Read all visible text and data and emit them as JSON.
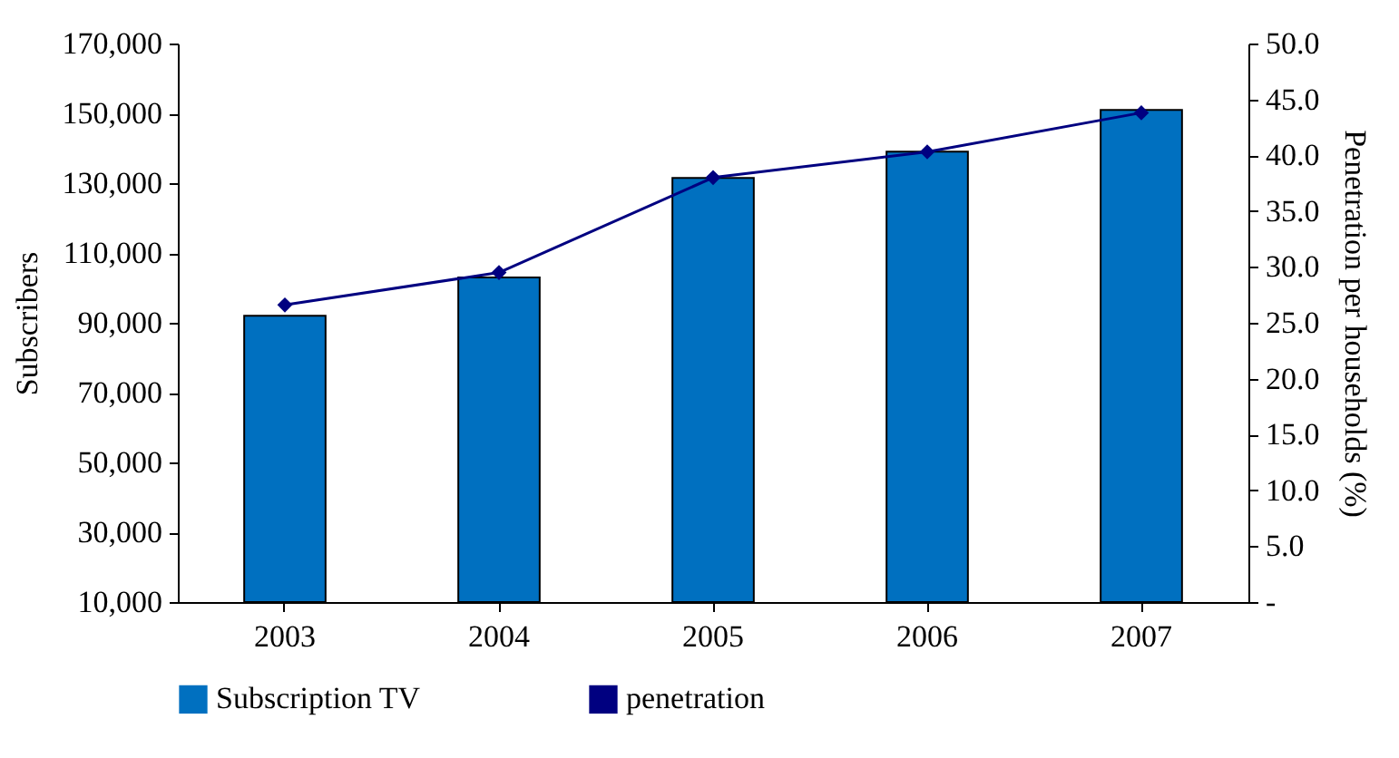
{
  "chart_data": {
    "type": "bar",
    "categories": [
      "2003",
      "2004",
      "2005",
      "2006",
      "2007"
    ],
    "ylabel": "Subscribers",
    "y2label": "Penetration per households (%)",
    "ylim": [
      10000,
      170000
    ],
    "yticks": [
      {
        "value": 10000,
        "label": "10,000"
      },
      {
        "value": 30000,
        "label": "30,000"
      },
      {
        "value": 50000,
        "label": "50,000"
      },
      {
        "value": 70000,
        "label": "70,000"
      },
      {
        "value": 90000,
        "label": "90,000"
      },
      {
        "value": 110000,
        "label": "110,000"
      },
      {
        "value": 130000,
        "label": "130,000"
      },
      {
        "value": 150000,
        "label": "150,000"
      },
      {
        "value": 170000,
        "label": "170,000"
      }
    ],
    "y2lim": [
      0,
      50
    ],
    "y2ticks": [
      {
        "value": 0,
        "label": "-"
      },
      {
        "value": 5,
        "label": "5.0"
      },
      {
        "value": 10,
        "label": "10.0"
      },
      {
        "value": 15,
        "label": "15.0"
      },
      {
        "value": 20,
        "label": "20.0"
      },
      {
        "value": 25,
        "label": "25.0"
      },
      {
        "value": 30,
        "label": "30.0"
      },
      {
        "value": 35,
        "label": "35.0"
      },
      {
        "value": 40,
        "label": "40.0"
      },
      {
        "value": 45,
        "label": "45.0"
      },
      {
        "value": 50,
        "label": "50.0"
      }
    ],
    "series": [
      {
        "name": "Subscription TV",
        "color": "#0070c0",
        "values": [
          92000,
          103000,
          131500,
          139000,
          151000
        ]
      },
      {
        "name": "penetration",
        "type": "line",
        "axis": "y2",
        "color": "#000080",
        "marker": "diamond",
        "values": [
          26.6,
          29.5,
          38.0,
          40.3,
          43.8
        ]
      }
    ],
    "legend": "bottom"
  }
}
